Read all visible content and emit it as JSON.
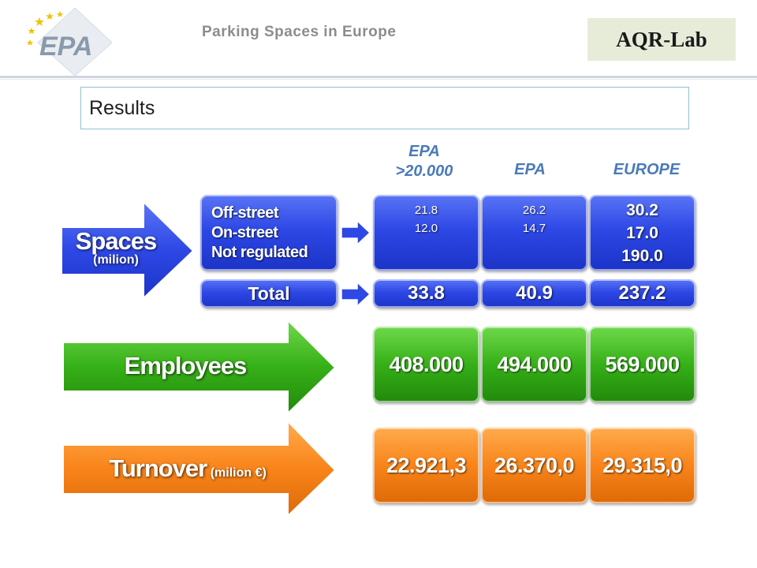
{
  "header": {
    "logo_text": "EPA",
    "title": "Parking Spaces in Europe",
    "lab_label": "AQR-Lab"
  },
  "section_title": "Results",
  "columns": [
    "EPA\n>20.000",
    "EPA",
    "EUROPE"
  ],
  "column_lines": {
    "c1_line1": "EPA",
    "c1_line2": ">20.000",
    "c2": "EPA",
    "c3": "EUROPE"
  },
  "spaces": {
    "arrow_label": "Spaces",
    "arrow_sublabel": "(milion)",
    "types": [
      "Off-street",
      "On-street",
      "Not regulated"
    ],
    "total_label": "Total",
    "values": {
      "epa_20000": [
        "21.8",
        "12.0"
      ],
      "epa": [
        "26.2",
        "14.7"
      ],
      "europe": [
        "30.2",
        "17.0",
        "190.0"
      ]
    },
    "totals": [
      "33.8",
      "40.9",
      "237.2"
    ]
  },
  "employees": {
    "arrow_label": "Employees",
    "values": [
      "408.000",
      "494.000",
      "569.000"
    ]
  },
  "turnover": {
    "arrow_label": "Turnover",
    "arrow_sublabel": "(milion €)",
    "values": [
      "22.921,3",
      "26.370,0",
      "29.315,0"
    ]
  },
  "colors": {
    "blue": "#2e48e6",
    "green": "#36b018",
    "orange": "#f9841a",
    "header_text": "#4a7ab8",
    "logo_blue": "#1f4e9c",
    "logo_star": "#f2c200"
  }
}
